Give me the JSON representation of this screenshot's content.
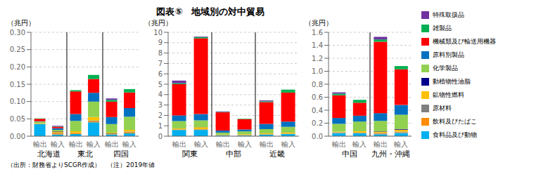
{
  "chart_data": [
    {
      "type": "bar",
      "title": "図表⑤　地域別の対中貿易",
      "annotations": [
        "（出所：財務省よりSCGR作成）　（注）2019年値"
      ],
      "ylabel": "（兆円）",
      "stacked": true,
      "grid": true,
      "legend": "right",
      "groups": [
        "北海道",
        "東北",
        "四国"
      ],
      "categories": [
        "輸出",
        "輸入",
        "輸出",
        "輸入",
        "輸出",
        "輸入"
      ],
      "ylim": [
        0,
        0.3
      ],
      "yticks": [
        {
          "value": 0,
          "label": "0.00"
        },
        0.05,
        {
          "value": 0.1,
          "label": "0.10"
        },
        0.15,
        {
          "value": 0.2,
          "label": "0.20"
        },
        0.25,
        {
          "value": 0.3,
          "label": "0.30"
        }
      ],
      "series": [
        {
          "name": "特殊取扱品",
          "color": "#7030a0",
          "values": [
            0.0,
            0.002,
            0.0,
            0.0,
            0.004,
            0.0
          ]
        },
        {
          "name": "雑製品",
          "color": "#00b050",
          "values": [
            0.001,
            0.001,
            0.004,
            0.012,
            0.005,
            0.01
          ]
        },
        {
          "name": "機械類及び輸送用機器",
          "color": "#ff0000",
          "values": [
            0.007,
            0.004,
            0.065,
            0.04,
            0.045,
            0.045
          ]
        },
        {
          "name": "原料別製品",
          "color": "#0070c0",
          "values": [
            0.001,
            0.005,
            0.02,
            0.025,
            0.02,
            0.025
          ]
        },
        {
          "name": "化学製品",
          "color": "#92d050",
          "values": [
            0.005,
            0.004,
            0.03,
            0.045,
            0.025,
            0.038
          ]
        },
        {
          "name": "動植物性油脂",
          "color": "#00008b",
          "values": [
            0.0,
            0.001,
            0.0,
            0.0,
            0.0,
            0.0
          ]
        },
        {
          "name": "鉱物性燃料",
          "color": "#ffc000",
          "values": [
            0.001,
            0.003,
            0.005,
            0.01,
            0.002,
            0.005
          ]
        },
        {
          "name": "原材料",
          "color": "#808080",
          "values": [
            0.0,
            0.001,
            0.001,
            0.002,
            0.002,
            0.002
          ]
        },
        {
          "name": "飲料及びたばこ",
          "color": "#ff8c00",
          "values": [
            0.001,
            0.004,
            0.002,
            0.003,
            0.001,
            0.003
          ]
        },
        {
          "name": "食料品及び動物",
          "color": "#00b0f0",
          "values": [
            0.035,
            0.005,
            0.006,
            0.04,
            0.005,
            0.008
          ]
        }
      ]
    },
    {
      "type": "bar",
      "ylabel": "（兆円）",
      "stacked": true,
      "grid": true,
      "groups": [
        "関東",
        "中部",
        "近畿"
      ],
      "categories": [
        "輸出",
        "輸入",
        "輸出",
        "輸入",
        "輸出",
        "輸入"
      ],
      "ylim": [
        0,
        10
      ],
      "yticks": [
        0,
        1,
        2,
        3,
        4,
        5,
        6,
        7,
        8,
        9,
        10
      ],
      "series": [
        {
          "name": "特殊取扱品",
          "color": "#7030a0",
          "values": [
            0.25,
            0.05,
            0.05,
            0.0,
            0.08,
            0.0
          ]
        },
        {
          "name": "雑製品",
          "color": "#00b050",
          "values": [
            0.1,
            0.12,
            0.04,
            0.04,
            0.08,
            0.28
          ]
        },
        {
          "name": "機械類及び輸送用機器",
          "color": "#ff0000",
          "values": [
            3.0,
            7.3,
            1.75,
            1.0,
            2.1,
            2.8
          ]
        },
        {
          "name": "原料別製品",
          "color": "#0070c0",
          "values": [
            0.55,
            0.6,
            0.2,
            0.18,
            0.5,
            0.5
          ]
        },
        {
          "name": "化学製品",
          "color": "#92d050",
          "values": [
            0.7,
            0.65,
            0.2,
            0.28,
            0.4,
            0.55
          ]
        },
        {
          "name": "動植物性油脂",
          "color": "#00008b",
          "values": [
            0.01,
            0.01,
            0.005,
            0.005,
            0.01,
            0.01
          ]
        },
        {
          "name": "鉱物性燃料",
          "color": "#ffc000",
          "values": [
            0.1,
            0.18,
            0.04,
            0.08,
            0.08,
            0.1
          ]
        },
        {
          "name": "原材料",
          "color": "#808080",
          "values": [
            0.02,
            0.04,
            0.01,
            0.01,
            0.02,
            0.02
          ]
        },
        {
          "name": "飲料及びたばこ",
          "color": "#ff8c00",
          "values": [
            0.02,
            0.04,
            0.01,
            0.01,
            0.02,
            0.02
          ]
        },
        {
          "name": "食料品及び動物",
          "color": "#00b0f0",
          "values": [
            0.6,
            0.6,
            0.08,
            0.08,
            0.15,
            0.2
          ]
        }
      ]
    },
    {
      "type": "bar",
      "ylabel": "（兆円）",
      "stacked": true,
      "grid": true,
      "groups": [
        "中国",
        "九州・沖縄"
      ],
      "categories": [
        "輸出",
        "輸入",
        "輸出",
        "輸入"
      ],
      "ylim": [
        0,
        1.6
      ],
      "yticks": [
        {
          "value": 0,
          "label": "0.0"
        },
        0.2,
        0.4,
        0.6,
        0.8,
        {
          "value": 1.0,
          "label": "1.0"
        },
        1.2,
        1.4,
        1.6
      ],
      "series": [
        {
          "name": "特殊取扱品",
          "color": "#7030a0",
          "values": [
            0.02,
            0.0,
            0.04,
            0.0
          ]
        },
        {
          "name": "雑製品",
          "color": "#00b050",
          "values": [
            0.025,
            0.045,
            0.035,
            0.05
          ]
        },
        {
          "name": "機械類及び輸送用機器",
          "color": "#ff0000",
          "values": [
            0.35,
            0.2,
            1.1,
            0.55
          ]
        },
        {
          "name": "原料別製品",
          "color": "#0070c0",
          "values": [
            0.09,
            0.09,
            0.12,
            0.15
          ]
        },
        {
          "name": "化学製品",
          "color": "#92d050",
          "values": [
            0.12,
            0.15,
            0.16,
            0.22
          ]
        },
        {
          "name": "動植物性油脂",
          "color": "#00008b",
          "values": [
            0.0,
            0.0,
            0.005,
            0.01
          ]
        },
        {
          "name": "鉱物性燃料",
          "color": "#ffc000",
          "values": [
            0.01,
            0.02,
            0.02,
            0.03
          ]
        },
        {
          "name": "原材料",
          "color": "#808080",
          "values": [
            0.005,
            0.005,
            0.01,
            0.01
          ]
        },
        {
          "name": "飲料及びたばこ",
          "color": "#ff8c00",
          "values": [
            0.005,
            0.005,
            0.01,
            0.01
          ]
        },
        {
          "name": "食料品及び動物",
          "color": "#00b0f0",
          "values": [
            0.05,
            0.045,
            0.03,
            0.05
          ]
        }
      ]
    }
  ]
}
